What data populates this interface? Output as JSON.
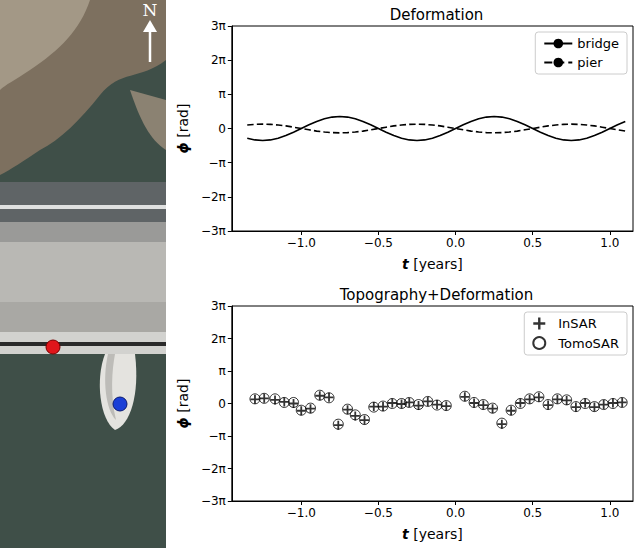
{
  "map_image": {
    "north_label": "N"
  },
  "chart_data": [
    {
      "type": "line",
      "title": "Deformation",
      "x_label": "t [years]",
      "y_label": "ϕ [rad]",
      "x": [
        -1.35,
        -1.3,
        -1.25,
        -1.2,
        -1.15,
        -1.1,
        -1.05,
        -1.0,
        -0.95,
        -0.9,
        -0.85,
        -0.8,
        -0.75,
        -0.7,
        -0.65,
        -0.6,
        -0.55,
        -0.5,
        -0.45,
        -0.4,
        -0.35,
        -0.3,
        -0.25,
        -0.2,
        -0.15,
        -0.1,
        -0.05,
        0.0,
        0.05,
        0.1,
        0.15,
        0.2,
        0.25,
        0.3,
        0.35,
        0.4,
        0.45,
        0.5,
        0.55,
        0.6,
        0.65,
        0.7,
        0.75,
        0.8,
        0.85,
        0.9,
        0.95,
        1.0,
        1.05,
        1.1
      ],
      "series": [
        {
          "name": "bridge",
          "color": "#000000",
          "line_style": "solid",
          "values": [
            -0.89,
            -1.05,
            -1.1,
            -1.05,
            -0.89,
            -0.65,
            -0.34,
            0,
            0.34,
            0.65,
            0.89,
            1.05,
            1.1,
            1.05,
            0.89,
            0.65,
            0.34,
            0,
            -0.34,
            -0.65,
            -0.89,
            -1.05,
            -1.1,
            -1.05,
            -0.89,
            -0.65,
            -0.34,
            0,
            0.34,
            0.65,
            0.89,
            1.05,
            1.1,
            1.05,
            0.89,
            0.65,
            0.34,
            0,
            -0.34,
            -0.65,
            -0.89,
            -1.05,
            -1.1,
            -1.05,
            -0.89,
            -0.65,
            -0.34,
            0,
            0.34,
            0.65
          ]
        },
        {
          "name": "pier",
          "color": "#000000",
          "line_style": "dashed",
          "values": [
            0.32,
            0.38,
            0.4,
            0.38,
            0.32,
            0.24,
            0.12,
            0,
            -0.12,
            -0.24,
            -0.32,
            -0.38,
            -0.4,
            -0.38,
            -0.32,
            -0.24,
            -0.12,
            0,
            0.12,
            0.24,
            0.32,
            0.38,
            0.4,
            0.38,
            0.32,
            0.24,
            0.12,
            0,
            -0.12,
            -0.24,
            -0.32,
            -0.38,
            -0.4,
            -0.38,
            -0.32,
            -0.24,
            -0.12,
            0,
            0.12,
            0.24,
            0.32,
            0.38,
            0.4,
            0.38,
            0.32,
            0.24,
            0.12,
            0,
            -0.12,
            -0.24
          ]
        }
      ],
      "xlim": [
        -1.45,
        1.15
      ],
      "xticks": [
        {
          "value": -1,
          "label": "−1.0"
        },
        {
          "value": -0.5,
          "label": "−0.5"
        },
        {
          "value": 0,
          "label": "0.0"
        },
        0.5,
        {
          "value": 1,
          "label": "1.0"
        }
      ],
      "ylim": [
        -9.4248,
        9.4248
      ],
      "yticks": [
        {
          "value": -9.4248,
          "label": "−3π"
        },
        {
          "value": -6.2832,
          "label": "−2π"
        },
        {
          "value": -3.1416,
          "label": "−π"
        },
        0,
        {
          "value": 3.1416,
          "label": "π"
        },
        {
          "value": 6.2832,
          "label": "2π"
        },
        {
          "value": 9.4248,
          "label": "3π"
        }
      ],
      "grid": false,
      "legend": "upper right"
    },
    {
      "type": "scatter",
      "title": "Topography+Deformation",
      "x_label": "t [years]",
      "y_label": "ϕ [rad]",
      "x": [
        -1.3,
        -1.24,
        -1.17,
        -1.11,
        -1.05,
        -1.0,
        -0.94,
        -0.88,
        -0.82,
        -0.76,
        -0.7,
        -0.65,
        -0.59,
        -0.53,
        -0.47,
        -0.41,
        -0.35,
        -0.3,
        -0.24,
        -0.18,
        -0.12,
        -0.06,
        0.06,
        0.12,
        0.18,
        0.24,
        0.3,
        0.36,
        0.42,
        0.48,
        0.54,
        0.6,
        0.66,
        0.72,
        0.78,
        0.84,
        0.9,
        0.96,
        1.02,
        1.08
      ],
      "series": [
        {
          "name": "InSAR",
          "color": "#000000",
          "marker": "plus",
          "values": [
            0.4,
            0.5,
            0.35,
            0.15,
            0.0,
            -0.7,
            -0.5,
            0.75,
            0.6,
            -2.1,
            -0.6,
            -1.2,
            -1.6,
            -0.3,
            -0.3,
            0.05,
            -0.05,
            0.1,
            -0.2,
            0.2,
            -0.1,
            -0.25,
            0.65,
            0.05,
            -0.15,
            -0.5,
            -2.0,
            -0.7,
            0.05,
            0.4,
            0.6,
            -0.15,
            0.4,
            0.3,
            -0.35,
            0.05,
            -0.35,
            -0.1,
            0.05,
            0.1
          ]
        },
        {
          "name": "TomoSAR",
          "color": "#000000",
          "marker": "circle",
          "values": [
            0.45,
            0.5,
            0.45,
            0.1,
            0.1,
            -0.65,
            -0.45,
            0.8,
            0.55,
            -2.0,
            -0.55,
            -1.1,
            -1.55,
            -0.35,
            -0.25,
            0,
            0,
            0.1,
            -0.1,
            0.2,
            -0.15,
            -0.2,
            0.7,
            0.1,
            -0.1,
            -0.45,
            -1.9,
            -0.65,
            0,
            0.45,
            0.65,
            -0.1,
            0.45,
            0.35,
            -0.3,
            0,
            -0.3,
            -0.1,
            0,
            0.1
          ]
        }
      ],
      "xlim": [
        -1.45,
        1.15
      ],
      "xticks": [
        {
          "value": -1,
          "label": "−1.0"
        },
        {
          "value": -0.5,
          "label": "−0.5"
        },
        {
          "value": 0,
          "label": "0.0"
        },
        0.5,
        {
          "value": 1,
          "label": "1.0"
        }
      ],
      "ylim": [
        -9.4248,
        9.4248
      ],
      "yticks": [
        {
          "value": -9.4248,
          "label": "−3π"
        },
        {
          "value": -6.2832,
          "label": "−2π"
        },
        {
          "value": -3.1416,
          "label": "−π"
        },
        0,
        {
          "value": 3.1416,
          "label": "π"
        },
        {
          "value": 6.2832,
          "label": "2π"
        },
        {
          "value": 9.4248,
          "label": "3π"
        }
      ],
      "grid": false,
      "legend": "upper right"
    }
  ]
}
